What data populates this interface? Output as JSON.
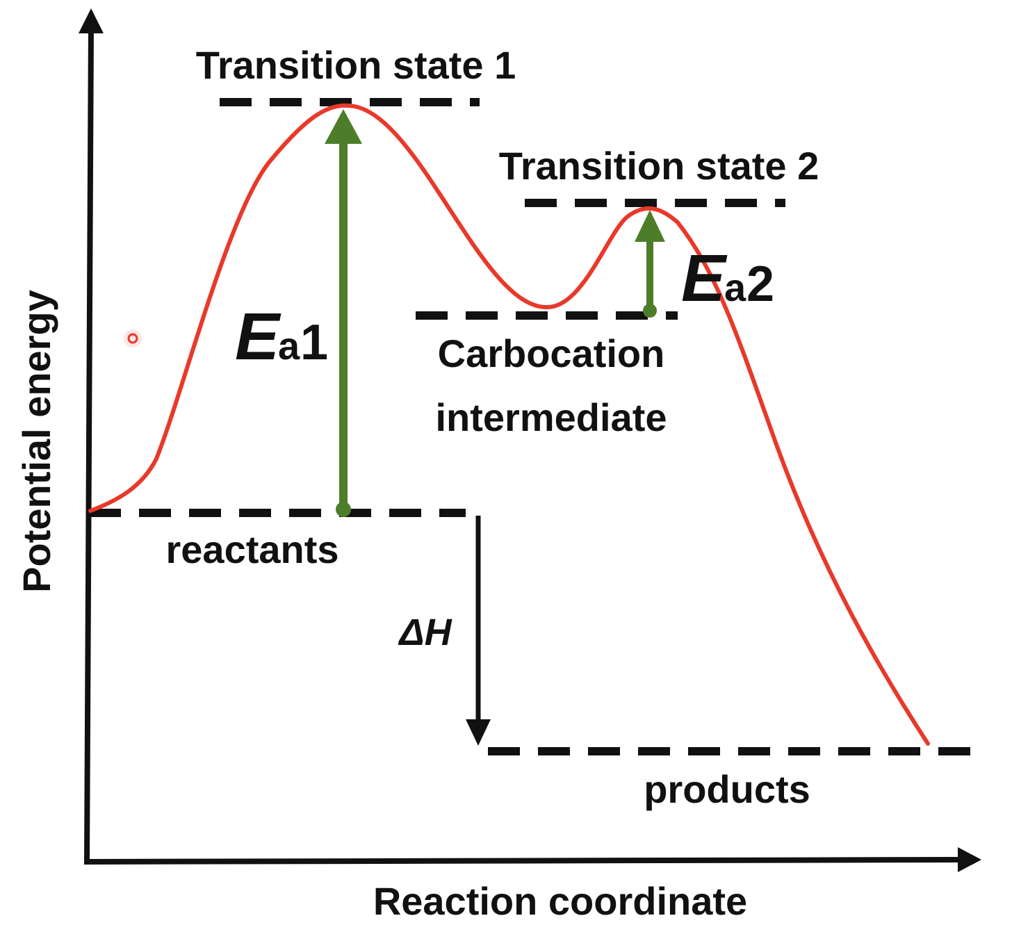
{
  "diagram": {
    "axes": {
      "y_label": "Potential energy",
      "x_label": "Reaction coordinate"
    },
    "levels": {
      "transition_state_1": "Transition state 1",
      "transition_state_2": "Transition state 2",
      "carbocation_line1": "Carbocation",
      "carbocation_line2": "intermediate",
      "reactants": "reactants",
      "products": "products"
    },
    "energies": {
      "ea1_symbol": "E",
      "ea1_subscript": "a",
      "ea1_number": "1",
      "ea2_symbol": "E",
      "ea2_subscript": "a",
      "ea2_number": "2",
      "delta_h": "ΔH"
    },
    "colors": {
      "curve": "#e8392a",
      "activation_arrow": "#4e7d2a",
      "axes": "#111111",
      "dashes": "#111111"
    }
  }
}
